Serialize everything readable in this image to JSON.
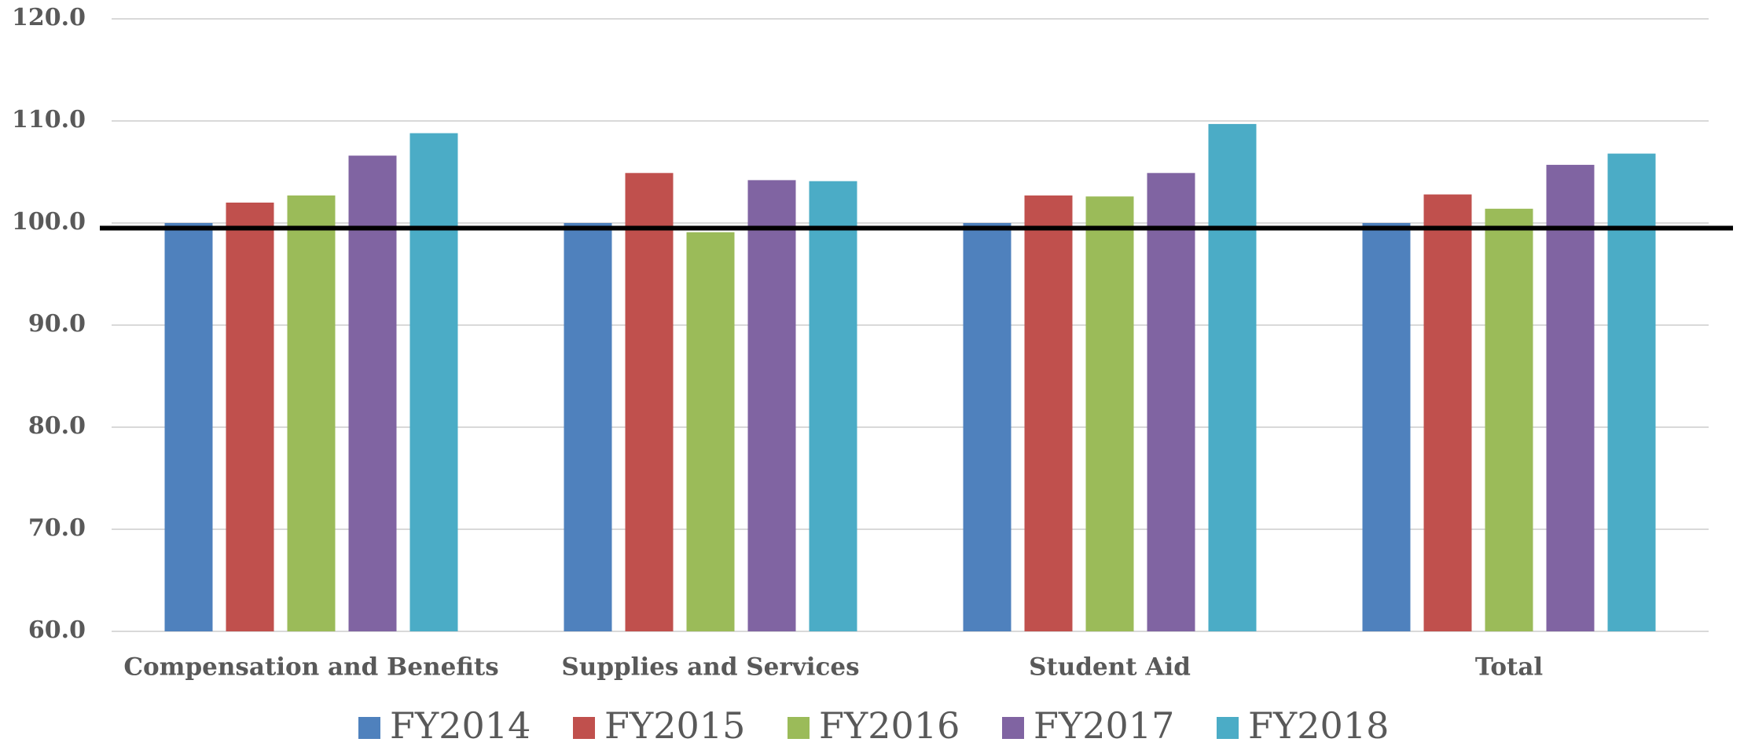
{
  "chart_data": {
    "type": "bar",
    "categories": [
      "Compensation and Benefits",
      "Supplies and Services",
      "Student Aid",
      "Total"
    ],
    "series": [
      {
        "name": "FY2014",
        "color": "#4f81bd",
        "values": [
          100.0,
          100.0,
          100.0,
          100.0
        ]
      },
      {
        "name": "FY2015",
        "color": "#c0504d",
        "values": [
          102.0,
          104.9,
          102.7,
          102.8
        ]
      },
      {
        "name": "FY2016",
        "color": "#9bbb59",
        "values": [
          102.7,
          99.1,
          102.6,
          101.4
        ]
      },
      {
        "name": "FY2017",
        "color": "#8064a2",
        "values": [
          106.6,
          104.2,
          104.9,
          105.7
        ]
      },
      {
        "name": "FY2018",
        "color": "#4bacc6",
        "values": [
          108.8,
          104.1,
          109.7,
          106.8
        ]
      }
    ],
    "ylim": [
      60,
      120
    ],
    "yticks": [
      {
        "value": 60,
        "label": "60.0"
      },
      {
        "value": 70,
        "label": "70.0"
      },
      {
        "value": 80,
        "label": "80.0"
      },
      {
        "value": 90,
        "label": "90.0"
      },
      {
        "value": 100,
        "label": "100.0"
      },
      {
        "value": 110,
        "label": "110.0"
      },
      {
        "value": 120,
        "label": "120.0"
      }
    ],
    "grid": true,
    "reference_line": 99.5,
    "legend": "bottom"
  }
}
